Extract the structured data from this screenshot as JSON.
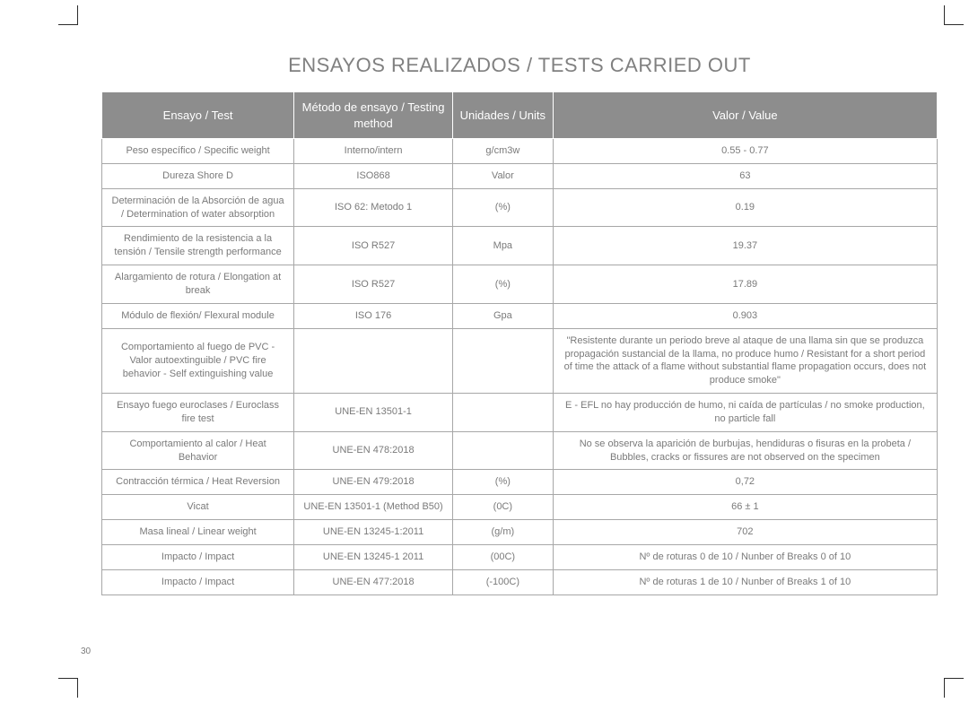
{
  "page_number": "30",
  "title": "ENSAYOS REALIZADOS / TESTS CARRIED OUT",
  "table": {
    "type": "table",
    "header_bg": "#8d8d8d",
    "header_fg": "#ffffff",
    "border_color": "#a7a7a7",
    "text_color": "#7a7a7a",
    "font_size_header": 13,
    "font_size_body": 11,
    "col_widths_pct": [
      23,
      19,
      12,
      46
    ],
    "columns": [
      "Ensayo / Test",
      "Método de ensayo / Testing method",
      "Unidades / Units",
      "Valor / Value"
    ],
    "rows": [
      {
        "test": "Peso específico / Specific weight",
        "method": "Interno/intern",
        "units": "g/cm3w",
        "value": "0.55 - 0.77"
      },
      {
        "test": "Dureza Shore D",
        "method": "ISO868",
        "units": "Valor",
        "value": "63"
      },
      {
        "test": "Determinación de la Absorción de agua / Determination of water absorption",
        "method": "ISO 62: Metodo 1",
        "units": "(%)",
        "value": "0.19"
      },
      {
        "test": "Rendimiento de la resistencia a la tensión / Tensile strength performance",
        "method": "ISO R527",
        "units": "Mpa",
        "value": "19.37"
      },
      {
        "test": "Alargamiento de rotura / Elongation at break",
        "method": "ISO R527",
        "units": "(%)",
        "value": "17.89"
      },
      {
        "test": "Módulo de flexión/ Flexural module",
        "method": "ISO 176",
        "units": "Gpa",
        "value": "0.903"
      },
      {
        "test": "Comportamiento al fuego de PVC  - Valor autoextinguible / PVC fire behavior - Self extinguishing value",
        "method": "",
        "units": "",
        "value": "\"Resistente durante un periodo breve al ataque de una llama sin que se produzca propagación sustancial de la llama, no produce humo / Resistant for a short period of time the attack of a flame without substantial flame propagation occurs, does not produce smoke\""
      },
      {
        "test": "Ensayo fuego euroclases / Euroclass fire test",
        "method": "UNE-EN 13501-1",
        "units": "",
        "value": "E - EFL  no hay producción de humo, ni caída de partículas / no smoke production, no particle fall"
      },
      {
        "test": "Comportamiento al calor / Heat Behavior",
        "method": "UNE-EN 478:2018",
        "units": "",
        "value": "No se observa la aparición de burbujas, hendiduras o fisuras en la probeta / Bubbles, cracks or fissures are not observed on the specimen"
      },
      {
        "test": "Contracción térmica / Heat Reversion",
        "method": "UNE-EN 479:2018",
        "units": "(%)",
        "value": "0,72"
      },
      {
        "test": "Vicat",
        "method": "UNE-EN 13501-1 (Method B50)",
        "units": "(0C)",
        "value": "66  ± 1"
      },
      {
        "test": "Masa lineal / Linear weight",
        "method": "UNE-EN 13245-1:2011",
        "units": "(g/m)",
        "value": "702"
      },
      {
        "test": "Impacto / Impact",
        "method": "UNE-EN 13245-1 2011",
        "units": "(00C)",
        "value": "Nº de roturas 0 de 10 /  Nunber of Breaks 0 of 10"
      },
      {
        "test": "Impacto / Impact",
        "method": "UNE-EN 477:2018",
        "units": "(-100C)",
        "value": "Nº de roturas 1 de 10 /  Nunber of Breaks 1 of 10"
      }
    ]
  }
}
